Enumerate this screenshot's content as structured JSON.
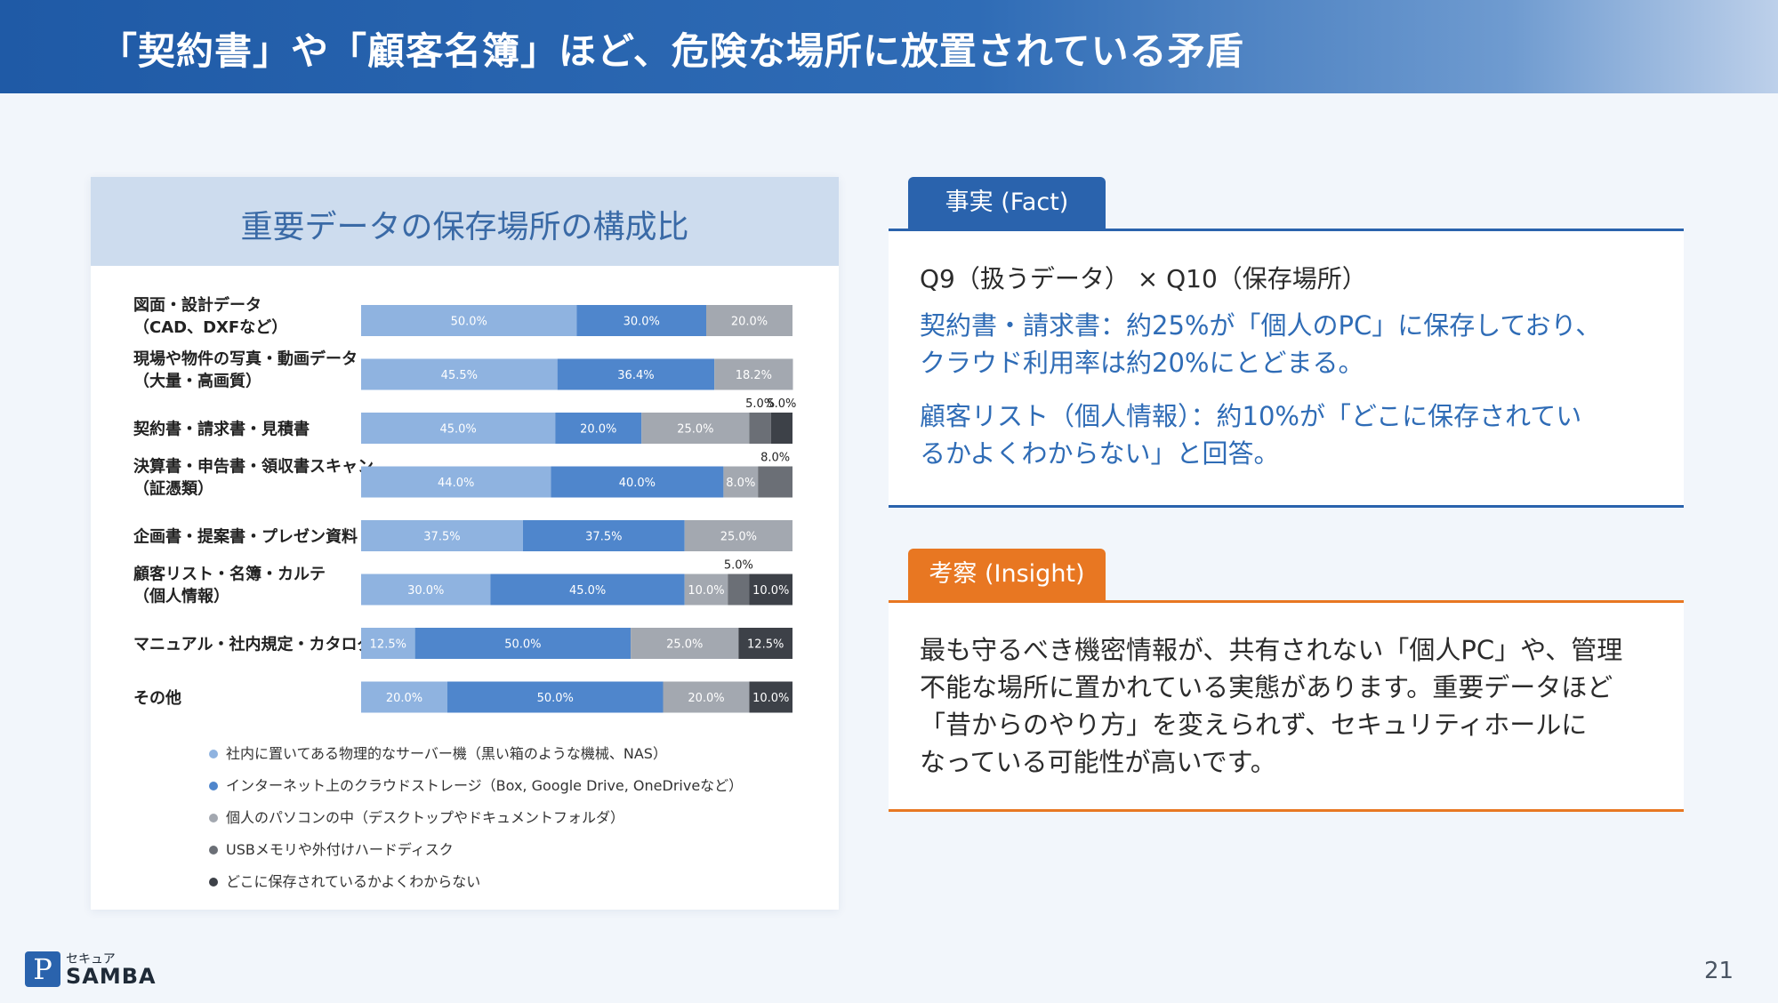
{
  "header": {
    "title": "「契約書」や「顧客名簿」ほど、危険な場所に放置されている矛盾"
  },
  "chart_data": {
    "type": "bar",
    "orientation": "horizontal-stacked-100",
    "title": "重要データの保存場所の構成比",
    "categories": [
      [
        "図面・設計データ",
        "（CAD、DXFなど）"
      ],
      [
        "現場や物件の写真・動画データ",
        "（大量・高画質）"
      ],
      [
        "契約書・請求書・見積書"
      ],
      [
        "決算書・申告書・領収書スキャン",
        "（証憑類）"
      ],
      [
        "企画書・提案書・プレゼン資料"
      ],
      [
        "顧客リスト・名簿・カルテ",
        "（個人情報）"
      ],
      [
        "マニュアル・社内規定・カタログ"
      ],
      [
        "その他"
      ]
    ],
    "series": [
      {
        "name": "社内に置いてある物理的なサーバー機（黒い箱のような機械、NAS）",
        "color": "#8fb3e0",
        "values": [
          50.0,
          45.5,
          45.0,
          44.0,
          37.5,
          30.0,
          12.5,
          20.0
        ]
      },
      {
        "name": "インターネット上のクラウドストレージ（Box, Google Drive, OneDriveなど）",
        "color": "#4f86cc",
        "values": [
          30.0,
          36.4,
          20.0,
          40.0,
          37.5,
          45.0,
          50.0,
          50.0
        ]
      },
      {
        "name": "個人のパソコンの中（デスクトップやドキュメントフォルダ）",
        "color": "#a3a8b0",
        "values": [
          20.0,
          18.2,
          25.0,
          8.0,
          25.0,
          10.0,
          25.0,
          20.0
        ]
      },
      {
        "name": "USBメモリや外付けハードディスク",
        "color": "#6b6f76",
        "values": [
          0,
          0,
          5.0,
          8.0,
          0,
          5.0,
          0,
          0
        ]
      },
      {
        "name": "どこに保存されているかよくわからない",
        "color": "#3d4148",
        "values": [
          0,
          0,
          5.0,
          0,
          0,
          10.0,
          12.5,
          10.0
        ]
      }
    ],
    "xlim": [
      0,
      100
    ],
    "legend_position": "bottom"
  },
  "fact": {
    "tab": "事実 (Fact)",
    "heading": "Q9（扱うデータ） × Q10（保存場所）",
    "lines": [
      "契約書・請求書：約25%が「個人のPC」に保存しており、",
      "クラウド利用率は約20%にとどまる。",
      "顧客リスト（個人情報）：約10%が「どこに保存されてい",
      "るかよくわからない」と回答。"
    ]
  },
  "insight": {
    "tab": "考察 (Insight)",
    "lines": [
      "最も守るべき機密情報が、共有されない「個人PC」や、管理",
      "不能な場所に置かれている実態があります。重要データほど",
      "「昔からのやり方」を変えられず、セキュリティホールに",
      "なっている可能性が高いです。"
    ]
  },
  "footer": {
    "logo_kana": "セキュア",
    "logo_word": "SAMBA",
    "logo_mark": "P",
    "page_number": "21"
  }
}
